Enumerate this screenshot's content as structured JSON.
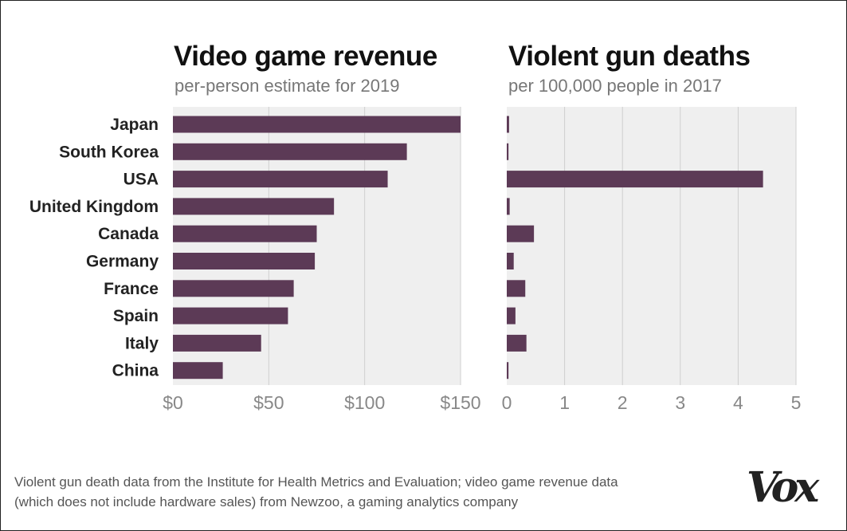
{
  "colors": {
    "bar": "#5c3a56",
    "plot_bg": "#efefef",
    "grid": "#cfcfcf",
    "tick_text": "#888888",
    "label_text": "#222222"
  },
  "chart_data": [
    {
      "type": "bar",
      "orientation": "horizontal",
      "title": "Video game revenue",
      "subtitle": "per-person estimate for 2019",
      "categories": [
        "Japan",
        "South Korea",
        "USA",
        "United Kingdom",
        "Canada",
        "Germany",
        "France",
        "Spain",
        "Italy",
        "China"
      ],
      "values": [
        150,
        122,
        112,
        84,
        75,
        74,
        63,
        60,
        46,
        26
      ],
      "xlim": [
        0,
        150
      ],
      "ticks": [
        0,
        50,
        100,
        150
      ],
      "tick_labels": [
        "$0",
        "$50",
        "$100",
        "$150"
      ],
      "grid": true
    },
    {
      "type": "bar",
      "orientation": "horizontal",
      "title": "Violent gun deaths",
      "subtitle": "per 100,000 people in 2017",
      "categories": [
        "Japan",
        "South Korea",
        "USA",
        "United Kingdom",
        "Canada",
        "Germany",
        "France",
        "Spain",
        "Italy",
        "China"
      ],
      "values": [
        0.04,
        0.03,
        4.43,
        0.05,
        0.47,
        0.12,
        0.32,
        0.15,
        0.34,
        0.03
      ],
      "xlim": [
        0,
        5
      ],
      "ticks": [
        0,
        1,
        2,
        3,
        4,
        5
      ],
      "tick_labels": [
        "0",
        "1",
        "2",
        "3",
        "4",
        "5"
      ],
      "grid": true
    }
  ],
  "footer": {
    "note_line1": "Violent gun death data from the Institute for Health Metrics and Evaluation; video game revenue data",
    "note_line2": "(which does not include hardware sales) from Newzoo, a gaming analytics company",
    "logo": "Vox"
  }
}
